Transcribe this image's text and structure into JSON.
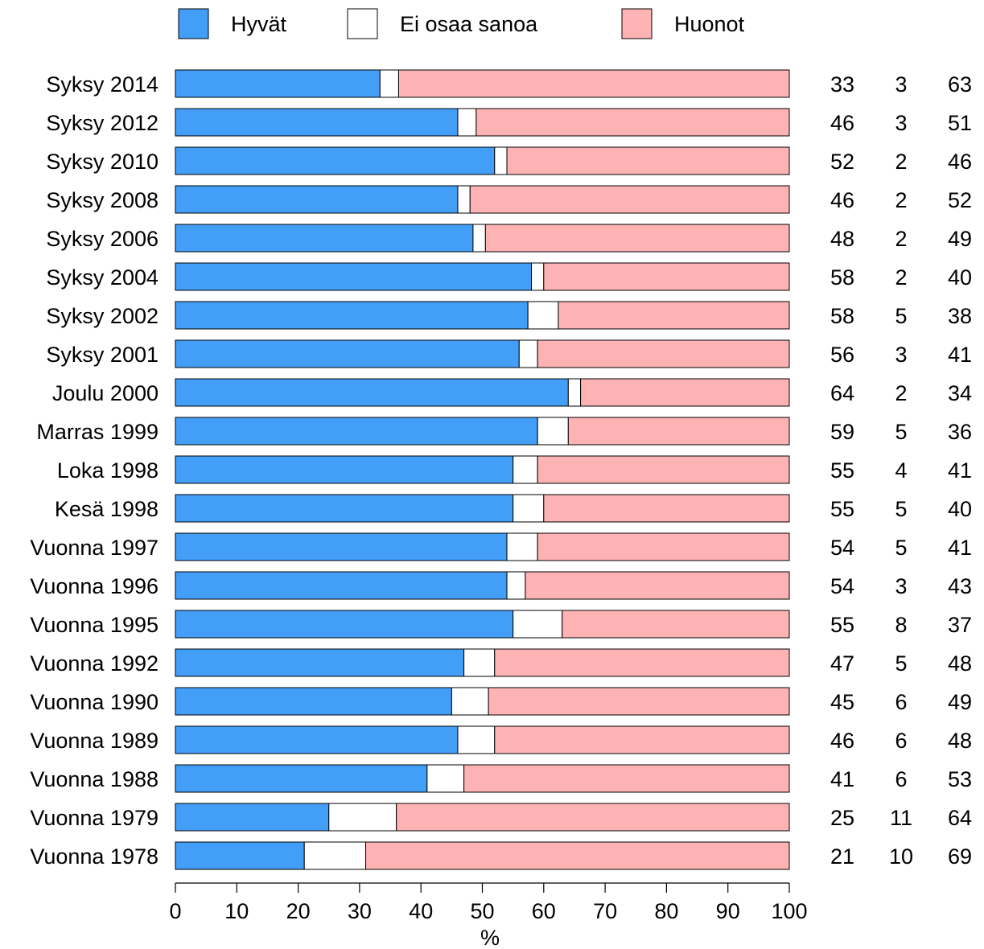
{
  "chart_data": {
    "type": "bar",
    "orientation": "horizontal",
    "stacked": true,
    "title": "",
    "xlabel": "%",
    "ylabel": "",
    "xlim": [
      0,
      100
    ],
    "xticks": [
      "0",
      "10",
      "20",
      "30",
      "40",
      "50",
      "60",
      "70",
      "80",
      "90",
      "100"
    ],
    "grid": false,
    "legend_position": "top",
    "categories": [
      "Syksy 2014",
      "Syksy 2012",
      "Syksy 2010",
      "Syksy 2008",
      "Syksy 2006",
      "Syksy 2004",
      "Syksy 2002",
      "Syksy 2001",
      "Joulu 2000",
      "Marras 1999",
      "Loka 1998",
      "Kesä 1998",
      "Vuonna 1997",
      "Vuonna 1996",
      "Vuonna 1995",
      "Vuonna 1992",
      "Vuonna 1990",
      "Vuonna 1989",
      "Vuonna 1988",
      "Vuonna 1979",
      "Vuonna 1978"
    ],
    "series": [
      {
        "name": "Hyvät",
        "color": "#429ef7",
        "values": [
          33,
          46,
          52,
          46,
          48,
          58,
          58,
          56,
          64,
          59,
          55,
          55,
          54,
          54,
          55,
          47,
          45,
          46,
          41,
          25,
          21
        ]
      },
      {
        "name": "Ei osaa sanoa",
        "color": "#ffffff",
        "values": [
          3,
          3,
          2,
          2,
          2,
          2,
          5,
          3,
          2,
          5,
          4,
          5,
          5,
          3,
          8,
          5,
          6,
          6,
          6,
          11,
          10
        ]
      },
      {
        "name": "Huonot",
        "color": "#fdb2b4",
        "values": [
          63,
          51,
          46,
          52,
          49,
          40,
          38,
          41,
          34,
          36,
          41,
          40,
          41,
          43,
          37,
          48,
          49,
          48,
          53,
          64,
          69
        ]
      }
    ]
  }
}
